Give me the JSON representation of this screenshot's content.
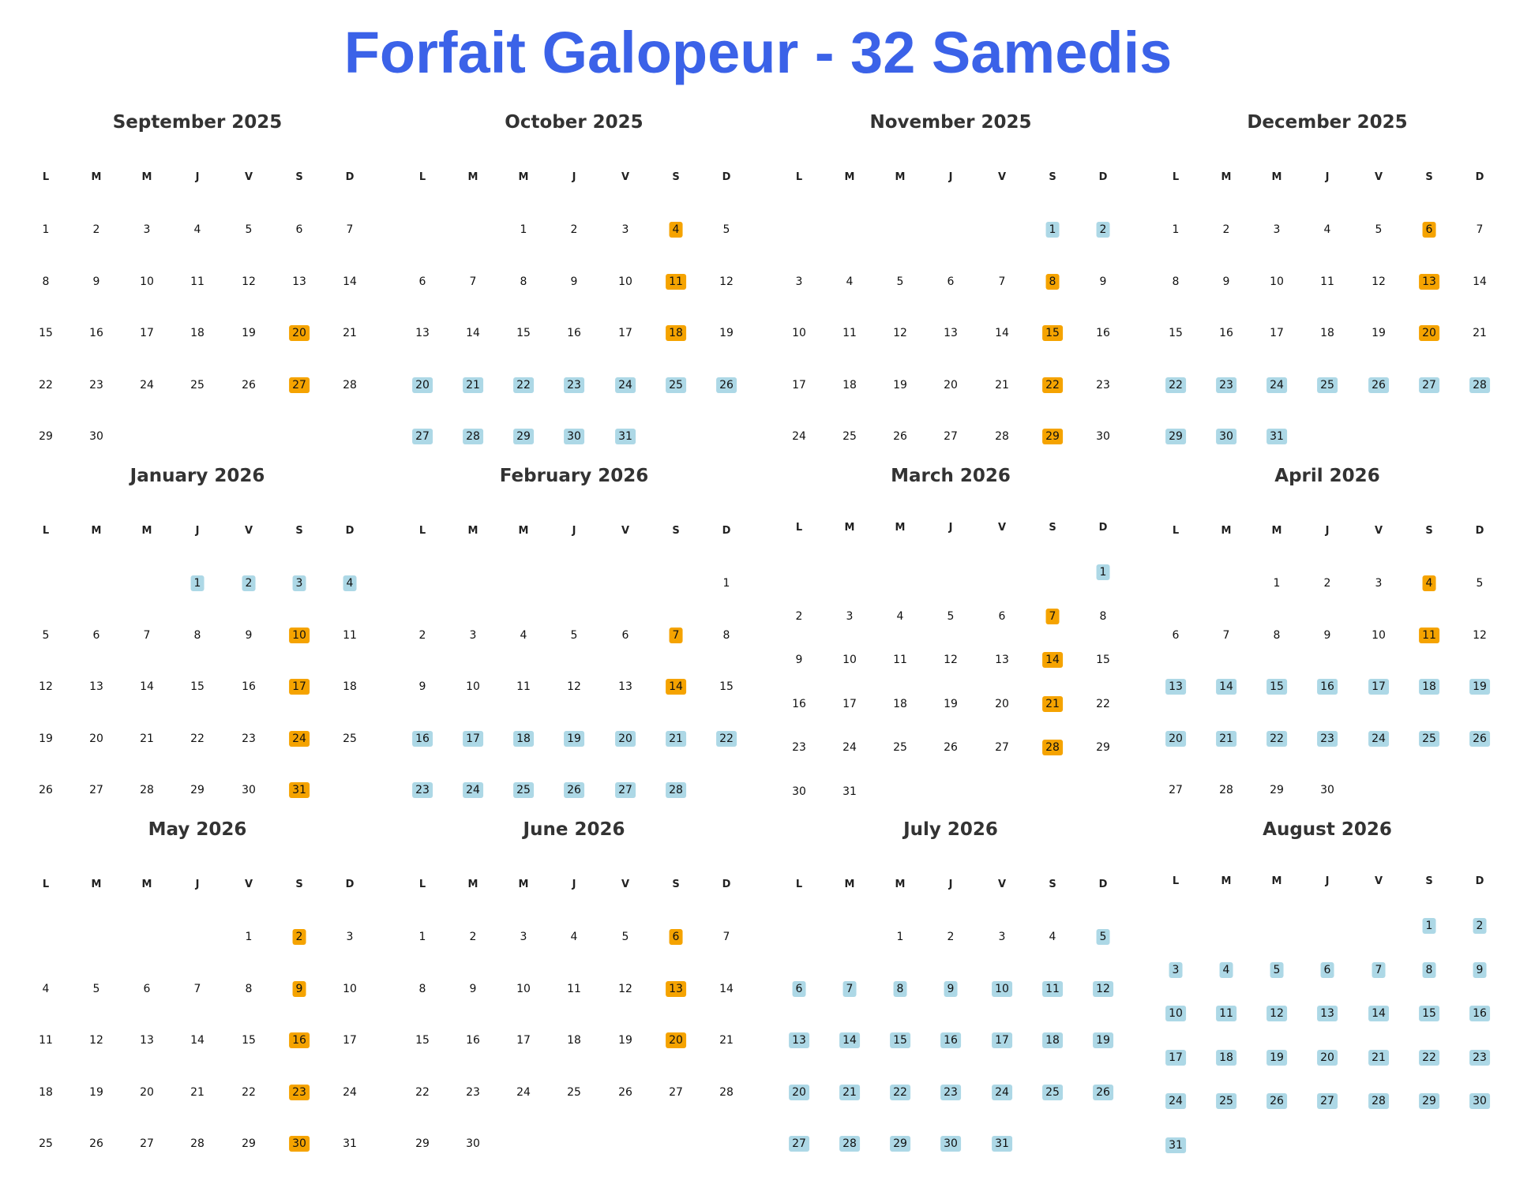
{
  "title": "Forfait Galopeur - 32 Samedis",
  "colors": {
    "title": "#3b62e8",
    "saturday_highlight": "#f5a300",
    "range_highlight": "#add8e6"
  },
  "weekday_labels": [
    "L",
    "M",
    "M",
    "J",
    "V",
    "S",
    "D"
  ],
  "months": [
    {
      "name": "September 2025",
      "first_col": 0,
      "days": 30,
      "orange": [
        20,
        27
      ],
      "blue": []
    },
    {
      "name": "October 2025",
      "first_col": 2,
      "days": 31,
      "orange": [
        4,
        11,
        18
      ],
      "blue": [
        20,
        21,
        22,
        23,
        24,
        25,
        26,
        27,
        28,
        29,
        30,
        31
      ]
    },
    {
      "name": "November 2025",
      "first_col": 5,
      "days": 30,
      "orange": [
        8,
        15,
        22,
        29
      ],
      "blue": [
        1,
        2
      ]
    },
    {
      "name": "December 2025",
      "first_col": 0,
      "days": 31,
      "orange": [
        6,
        13,
        20
      ],
      "blue": [
        22,
        23,
        24,
        25,
        26,
        27,
        28,
        29,
        30,
        31
      ]
    },
    {
      "name": "January 2026",
      "first_col": 3,
      "days": 31,
      "orange": [
        10,
        17,
        24,
        31
      ],
      "blue": [
        1,
        2,
        3,
        4
      ]
    },
    {
      "name": "February 2026",
      "first_col": 6,
      "days": 28,
      "orange": [
        7,
        14
      ],
      "blue": [
        16,
        17,
        18,
        19,
        20,
        21,
        22,
        23,
        24,
        25,
        26,
        27,
        28
      ]
    },
    {
      "name": "March 2026",
      "first_col": 6,
      "days": 31,
      "orange": [
        7,
        14,
        21,
        28
      ],
      "blue": [
        1
      ]
    },
    {
      "name": "April 2026",
      "first_col": 2,
      "days": 30,
      "orange": [
        4,
        11
      ],
      "blue": [
        13,
        14,
        15,
        16,
        17,
        18,
        19,
        20,
        21,
        22,
        23,
        24,
        25,
        26
      ]
    },
    {
      "name": "May 2026",
      "first_col": 4,
      "days": 31,
      "orange": [
        2,
        9,
        16,
        23,
        30
      ],
      "blue": []
    },
    {
      "name": "June 2026",
      "first_col": 0,
      "days": 30,
      "orange": [
        6,
        13,
        20
      ],
      "blue": []
    },
    {
      "name": "July 2026",
      "first_col": 2,
      "days": 31,
      "orange": [],
      "blue": [
        5,
        6,
        7,
        8,
        9,
        10,
        11,
        12,
        13,
        14,
        15,
        16,
        17,
        18,
        19,
        20,
        21,
        22,
        23,
        24,
        25,
        26,
        27,
        28,
        29,
        30,
        31
      ]
    },
    {
      "name": "August 2026",
      "first_col": 5,
      "days": 31,
      "orange": [],
      "blue": [
        1,
        2,
        3,
        4,
        5,
        6,
        7,
        8,
        9,
        10,
        11,
        12,
        13,
        14,
        15,
        16,
        17,
        18,
        19,
        20,
        21,
        22,
        23,
        24,
        25,
        26,
        27,
        28,
        29,
        30,
        31
      ]
    }
  ]
}
